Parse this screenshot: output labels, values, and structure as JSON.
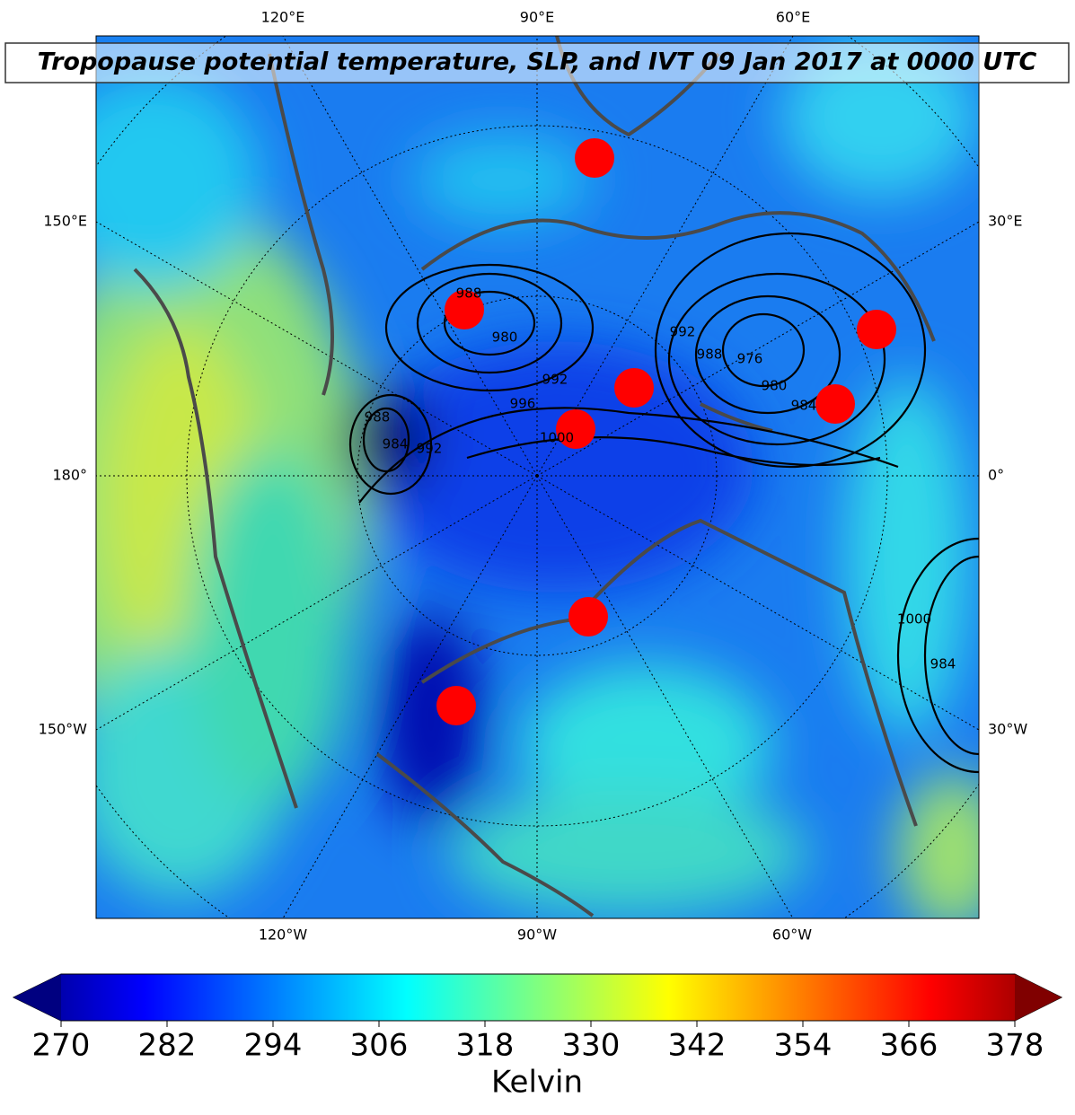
{
  "map": {
    "title": "Tropopause potential temperature, SLP, and IVT 09 Jan 2017 at 0000 UTC",
    "lon_labels": {
      "top": [
        "120°E",
        "90°E",
        "60°E"
      ],
      "left": [
        "150°E",
        "180°",
        "150°W"
      ],
      "right": [
        "30°E",
        "0°",
        "30°W"
      ],
      "bottom": [
        "120°W",
        "90°W",
        "60°W"
      ]
    },
    "contour_labels": [
      "988",
      "980",
      "992",
      "996",
      "1000",
      "988",
      "984",
      "992",
      "992",
      "988",
      "976",
      "980",
      "984",
      "1000",
      "984"
    ]
  },
  "colorbar": {
    "lim": [
      270,
      378
    ],
    "ticks": [
      270,
      282,
      294,
      306,
      318,
      330,
      342,
      354,
      366,
      378
    ],
    "label": "Kelvin",
    "colormap": "jet"
  }
}
